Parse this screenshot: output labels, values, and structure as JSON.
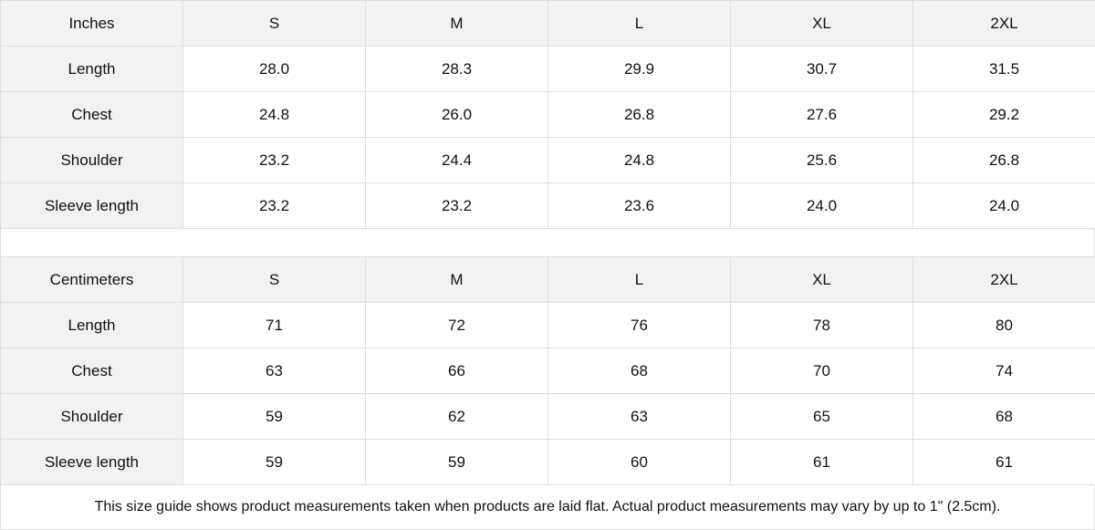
{
  "tables": [
    {
      "unit": "Inches",
      "sizes": [
        "S",
        "M",
        "L",
        "XL",
        "2XL"
      ],
      "rows": [
        {
          "label": "Length",
          "values": [
            "28.0",
            "28.3",
            "29.9",
            "30.7",
            "31.5"
          ]
        },
        {
          "label": "Chest",
          "values": [
            "24.8",
            "26.0",
            "26.8",
            "27.6",
            "29.2"
          ]
        },
        {
          "label": "Shoulder",
          "values": [
            "23.2",
            "24.4",
            "24.8",
            "25.6",
            "26.8"
          ]
        },
        {
          "label": "Sleeve length",
          "values": [
            "23.2",
            "23.2",
            "23.6",
            "24.0",
            "24.0"
          ]
        }
      ]
    },
    {
      "unit": "Centimeters",
      "sizes": [
        "S",
        "M",
        "L",
        "XL",
        "2XL"
      ],
      "rows": [
        {
          "label": "Length",
          "values": [
            "71",
            "72",
            "76",
            "78",
            "80"
          ]
        },
        {
          "label": "Chest",
          "values": [
            "63",
            "66",
            "68",
            "70",
            "74"
          ]
        },
        {
          "label": "Shoulder",
          "values": [
            "59",
            "62",
            "63",
            "65",
            "68"
          ]
        },
        {
          "label": "Sleeve length",
          "values": [
            "59",
            "59",
            "60",
            "61",
            "61"
          ]
        }
      ]
    }
  ],
  "note": "This size guide shows product measurements taken when products are laid flat.  Actual product measurements may vary by up to 1\" (2.5cm).",
  "colors": {
    "header_bg": "#f2f2f2",
    "border": "#dedede"
  }
}
